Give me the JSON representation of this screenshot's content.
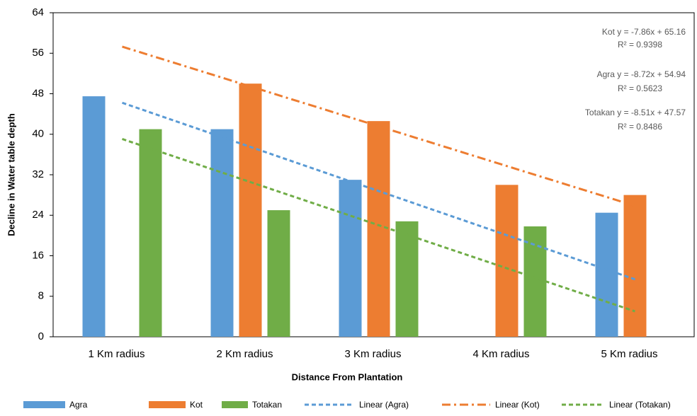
{
  "chart_data": {
    "type": "bar",
    "x_label": "Distance From Plantation",
    "y_label": "Decline in Water table depth",
    "categories": [
      "1 Km radius",
      "2 Km radius",
      "3 Km radius",
      "4 Km radius",
      "5 Km radius"
    ],
    "series": [
      {
        "name": "Agra",
        "color": "#5b9bd5",
        "values": [
          47.5,
          41,
          31,
          null,
          24.5
        ]
      },
      {
        "name": "Kot",
        "color": "#ed7d31",
        "values": [
          null,
          50,
          42.6,
          30,
          28
        ]
      },
      {
        "name": "Totakan",
        "color": "#70ad47",
        "values": [
          41,
          25,
          22.8,
          21.8,
          null
        ]
      }
    ],
    "trendlines": [
      {
        "name": "Linear (Agra)",
        "color": "#5b9bd5",
        "dash": "dashed",
        "values": [
          46.22,
          37.5,
          28.78,
          20.06,
          11.34
        ]
      },
      {
        "name": "Linear (Kot)",
        "color": "#ed7d31",
        "dash": "dash-dot",
        "values": [
          57.3,
          49.44,
          41.58,
          33.72,
          25.86
        ]
      },
      {
        "name": "Linear (Totakan)",
        "color": "#70ad47",
        "dash": "dashed",
        "values": [
          39.06,
          30.55,
          22.04,
          13.53,
          5.02
        ]
      }
    ],
    "annotations": [
      {
        "text": "Kot y = -7.86x + 65.16"
      },
      {
        "text": "R² = 0.9398"
      },
      {
        "text": "Agra  y = -8.72x + 54.94"
      },
      {
        "text": "R² = 0.5623"
      },
      {
        "text": "Totakan  y = -8.51x + 47.57"
      },
      {
        "text": "R² = 0.8486"
      }
    ],
    "ylim": [
      0,
      64
    ],
    "yticks": [
      0,
      8,
      16,
      24,
      32,
      40,
      48,
      56,
      64
    ],
    "grid": false
  }
}
